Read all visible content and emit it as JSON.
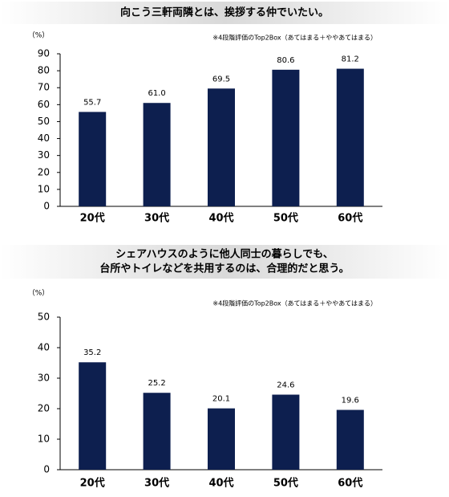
{
  "chart_data": [
    {
      "type": "bar",
      "title": [
        "向こう三軒両隣とは、挨拶する仲でいたい。"
      ],
      "y_unit": "（%）",
      "note": "※4段階評価のTop2Box（あてはまる＋ややあてはまる）",
      "categories": [
        "20代",
        "30代",
        "40代",
        "50代",
        "60代"
      ],
      "values": [
        55.7,
        61.0,
        69.5,
        80.6,
        81.2
      ],
      "value_labels": [
        "55.7",
        "61.0",
        "69.5",
        "80.6",
        "81.2"
      ],
      "color": "#0d1f4f",
      "ylim": [
        0,
        90
      ],
      "yticks": [
        0,
        10,
        20,
        30,
        40,
        50,
        60,
        70,
        80,
        90
      ]
    },
    {
      "type": "bar",
      "title": [
        "シェアハウスのように他人同士の暮らしでも、",
        "台所やトイレなどを共用するのは、合理的だと思う。"
      ],
      "y_unit": "（%）",
      "note": "※4段階評価のTop2Box（あてはまる＋ややあてはまる）",
      "categories": [
        "20代",
        "30代",
        "40代",
        "50代",
        "60代"
      ],
      "values": [
        35.2,
        25.2,
        20.1,
        24.6,
        19.6
      ],
      "value_labels": [
        "35.2",
        "25.2",
        "20.1",
        "24.6",
        "19.6"
      ],
      "color": "#0d1f4f",
      "ylim": [
        0,
        50
      ],
      "yticks": [
        0,
        10,
        20,
        30,
        40,
        50
      ]
    }
  ]
}
